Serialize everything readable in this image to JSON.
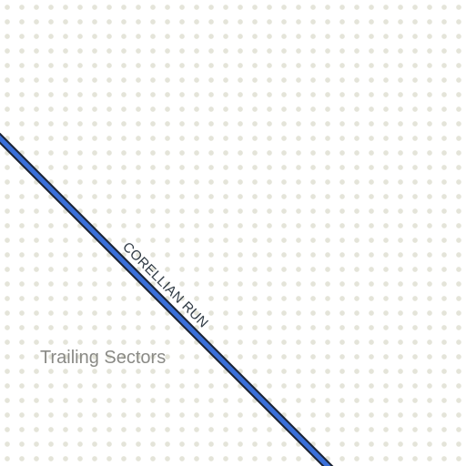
{
  "map": {
    "route": {
      "name": "CORELLIAN RUN",
      "color": "#3a6fd8",
      "casing_color": "#1a2233"
    },
    "region_label": "Trailing Sectors",
    "colors": {
      "background": "#ffffff",
      "grid_dot": "#e4e4d9",
      "region_label": "#8a8a86",
      "route_label": "#2f3a44"
    }
  }
}
